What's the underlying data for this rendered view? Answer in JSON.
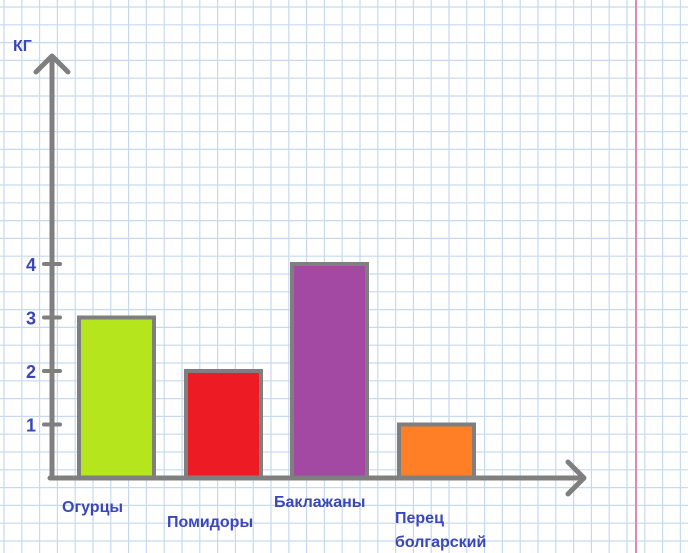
{
  "chart_data": {
    "type": "bar",
    "ylabel": "КГ",
    "yticks": [
      1,
      2,
      3,
      4
    ],
    "ylim": [
      0,
      8
    ],
    "grid": true,
    "categories": [
      [
        "Огурцы"
      ],
      [
        "Помидоры"
      ],
      [
        "Баклажаны"
      ],
      [
        "Перец",
        "болгарский"
      ]
    ],
    "values": [
      3,
      2,
      4,
      1
    ],
    "colors": [
      "#b5e61d",
      "#ed1c24",
      "#a349a4",
      "#ff7f27"
    ]
  },
  "style": {
    "grid_color": "#c6d9ef",
    "axis_color": "#7f7f7f",
    "margin_line_color": "#d98bb0",
    "label_color": "#3b47b8"
  }
}
